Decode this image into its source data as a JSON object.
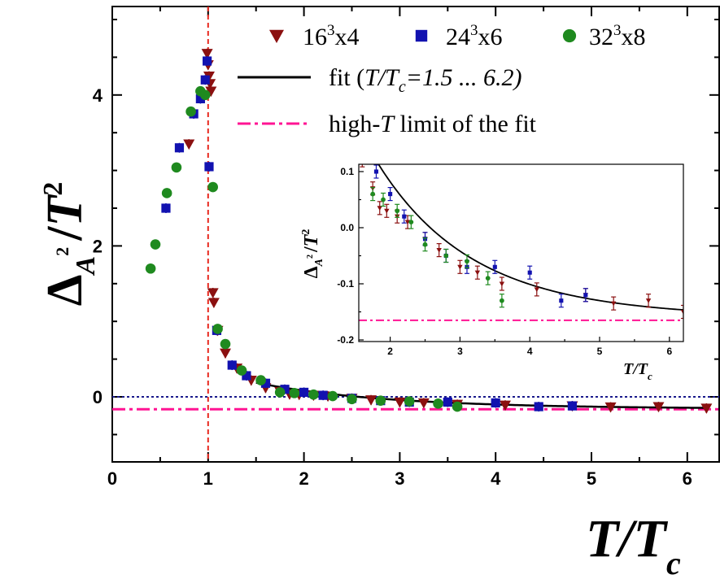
{
  "chart_data": [
    {
      "type": "scatter",
      "xlabel": "T/T_c",
      "ylabel": "Δ_{A²}/T²",
      "xlim": [
        0,
        6.3
      ],
      "ylim": [
        -0.8,
        5.2
      ],
      "x_ticks": [
        "0",
        "1",
        "2",
        "3",
        "4",
        "5",
        "6"
      ],
      "y_ticks": [
        "0",
        "2",
        "4"
      ],
      "reference_lines": [
        {
          "orientation": "vertical",
          "value": 1,
          "style": "dashed",
          "color": "#e8281e"
        },
        {
          "orientation": "horizontal",
          "value": 0,
          "style": "dotted",
          "color": "#1a1a8c"
        }
      ],
      "legend": {
        "placement": "top-right",
        "entries": [
          {
            "base": "16",
            "sup": "3",
            "suffix": "x4",
            "marker": "triangle-down",
            "color": "#8b1010"
          },
          {
            "base": "24",
            "sup": "3",
            "suffix": "x6",
            "marker": "square",
            "color": "#1212b0"
          },
          {
            "base": "32",
            "sup": "3",
            "suffix": "x8",
            "marker": "circle",
            "color": "#1f8a1f"
          },
          {
            "text_pre": "fit (",
            "text_italic": "T/T",
            "sub": "c",
            "text_rest": "=1.5 ... 6.2)",
            "marker": "line",
            "color": "#000000"
          },
          {
            "text_pre": "high-",
            "text_italic": "T",
            "text_rest": " limit of the fit",
            "marker": "dash-dot",
            "color": "#ff1493"
          }
        ]
      },
      "fit_curve": {
        "label": "fit (T/T_c=1.5 ... 6.2)",
        "x_range": [
          1.5,
          6.2
        ],
        "asymptote": -0.165
      },
      "high_T_limit": -0.165,
      "series": [
        {
          "name": "16³x4",
          "marker": "triangle-down",
          "color": "#8b1010",
          "points": [
            [
              0.8,
              3.35
            ],
            [
              0.99,
              4.55
            ],
            [
              1.0,
              4.4
            ],
            [
              1.01,
              4.25
            ],
            [
              1.02,
              4.15
            ],
            [
              1.03,
              4.05
            ],
            [
              1.05,
              1.38
            ],
            [
              1.06,
              1.25
            ],
            [
              1.1,
              0.88
            ],
            [
              1.18,
              0.58
            ],
            [
              1.3,
              0.38
            ],
            [
              1.45,
              0.22
            ],
            [
              1.6,
              0.12
            ],
            [
              1.75,
              0.07
            ],
            [
              1.85,
              0.035
            ],
            [
              1.95,
              0.03
            ],
            [
              2.1,
              0.02
            ],
            [
              2.25,
              0.01
            ],
            [
              2.5,
              -0.02
            ],
            [
              2.7,
              -0.04
            ],
            [
              3.0,
              -0.07
            ],
            [
              3.25,
              -0.08
            ],
            [
              3.6,
              -0.1
            ],
            [
              4.1,
              -0.11
            ],
            [
              4.8,
              -0.12
            ],
            [
              5.2,
              -0.135
            ],
            [
              5.7,
              -0.13
            ],
            [
              6.2,
              -0.15
            ]
          ]
        },
        {
          "name": "24³x6",
          "marker": "square",
          "color": "#1212b0",
          "points": [
            [
              0.56,
              2.5
            ],
            [
              0.7,
              3.3
            ],
            [
              0.85,
              3.75
            ],
            [
              0.92,
              3.95
            ],
            [
              0.97,
              4.2
            ],
            [
              0.99,
              4.45
            ],
            [
              1.01,
              3.05
            ],
            [
              1.09,
              0.88
            ],
            [
              1.25,
              0.42
            ],
            [
              1.4,
              0.28
            ],
            [
              1.6,
              0.18
            ],
            [
              1.8,
              0.1
            ],
            [
              2.0,
              0.06
            ],
            [
              2.2,
              0.02
            ],
            [
              2.5,
              -0.02
            ],
            [
              2.8,
              -0.05
            ],
            [
              3.1,
              -0.07
            ],
            [
              3.5,
              -0.07
            ],
            [
              4.0,
              -0.08
            ],
            [
              4.45,
              -0.13
            ],
            [
              4.8,
              -0.12
            ]
          ]
        },
        {
          "name": "32³x8",
          "marker": "circle",
          "color": "#1f8a1f",
          "points": [
            [
              0.4,
              1.7
            ],
            [
              0.45,
              2.02
            ],
            [
              0.57,
              2.7
            ],
            [
              0.67,
              3.04
            ],
            [
              0.82,
              3.78
            ],
            [
              0.92,
              4.05
            ],
            [
              0.97,
              4.0
            ],
            [
              1.05,
              2.78
            ],
            [
              1.1,
              0.9
            ],
            [
              1.18,
              0.7
            ],
            [
              1.35,
              0.35
            ],
            [
              1.55,
              0.22
            ],
            [
              1.75,
              0.06
            ],
            [
              1.9,
              0.05
            ],
            [
              2.1,
              0.03
            ],
            [
              2.3,
              0.01
            ],
            [
              2.5,
              -0.03
            ],
            [
              2.8,
              -0.05
            ],
            [
              3.1,
              -0.06
            ],
            [
              3.4,
              -0.09
            ],
            [
              3.6,
              -0.13
            ]
          ]
        }
      ]
    },
    {
      "type": "scatter",
      "inset": true,
      "xlabel": "T/T_c",
      "ylabel": "Δ_{A²}/T²",
      "xlim": [
        1.55,
        6.2
      ],
      "ylim": [
        -0.2,
        0.11
      ],
      "x_ticks": [
        "2",
        "3",
        "4",
        "5",
        "6"
      ],
      "y_ticks": [
        "0.1",
        "0.0",
        "-0.1",
        "-0.2"
      ],
      "high_T_limit": -0.165
    }
  ]
}
